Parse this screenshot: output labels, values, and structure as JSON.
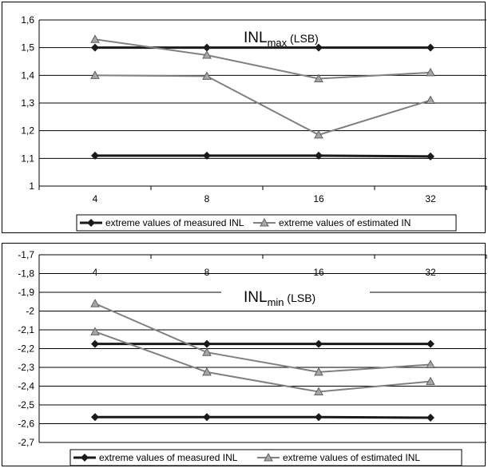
{
  "chart_data": [
    {
      "type": "line",
      "title_main": "INL",
      "title_sub": "max",
      "title_unit": " (LSB)",
      "categories": [
        "4",
        "8",
        "16",
        "32"
      ],
      "ylim": [
        1,
        1.6
      ],
      "yticks": [
        "1",
        "1,1",
        "1,2",
        "1,3",
        "1,4",
        "1,5",
        "1,6"
      ],
      "series": [
        {
          "name": "extreme values of measured INL",
          "marker": "diamond",
          "color": "#1a1a1a",
          "values": [
            1.5,
            1.5,
            1.5,
            1.5
          ]
        },
        {
          "marker": "diamond",
          "color": "#1a1a1a",
          "values": [
            1.11,
            1.11,
            1.11,
            1.107
          ]
        },
        {
          "name": "extreme values of estimated IN",
          "marker": "triangle",
          "color": "#808080",
          "values": [
            1.53,
            1.473,
            1.388,
            1.41
          ]
        },
        {
          "marker": "triangle",
          "color": "#808080",
          "values": [
            1.4,
            1.397,
            1.185,
            1.31
          ]
        }
      ],
      "legend": [
        {
          "label": "extreme values of measured INL",
          "marker": "diamond",
          "color": "#1a1a1a"
        },
        {
          "label": "extreme values of estimated IN",
          "marker": "triangle",
          "color": "#808080"
        }
      ],
      "legend_position": "bottom",
      "grid": true
    },
    {
      "type": "line",
      "title_main": "INL",
      "title_sub": "min",
      "title_unit": " (LSB)",
      "categories": [
        "4",
        "8",
        "16",
        "32"
      ],
      "ylim": [
        -2.7,
        -1.7
      ],
      "yticks": [
        "-2,7",
        "-2,6",
        "-2,5",
        "-2,4",
        "-2,3",
        "-2,2",
        "-2,1",
        "-2",
        "-1,9",
        "-1,8",
        "-1,7"
      ],
      "series": [
        {
          "name": "extreme values of measured INL",
          "marker": "diamond",
          "color": "#1a1a1a",
          "values": [
            -2.175,
            -2.175,
            -2.175,
            -2.175
          ]
        },
        {
          "marker": "diamond",
          "color": "#1a1a1a",
          "values": [
            -2.565,
            -2.565,
            -2.565,
            -2.568
          ]
        },
        {
          "name": "extreme values of estimated INL",
          "marker": "triangle",
          "color": "#808080",
          "values": [
            -1.96,
            -2.22,
            -2.325,
            -2.285
          ]
        },
        {
          "marker": "triangle",
          "color": "#808080",
          "values": [
            -2.11,
            -2.325,
            -2.43,
            -2.375
          ]
        }
      ],
      "legend": [
        {
          "label": "extreme values of measured INL",
          "marker": "diamond",
          "color": "#1a1a1a"
        },
        {
          "label": "extreme values of estimated INL",
          "marker": "triangle",
          "color": "#808080"
        }
      ],
      "legend_position": "bottom",
      "grid": true
    }
  ]
}
